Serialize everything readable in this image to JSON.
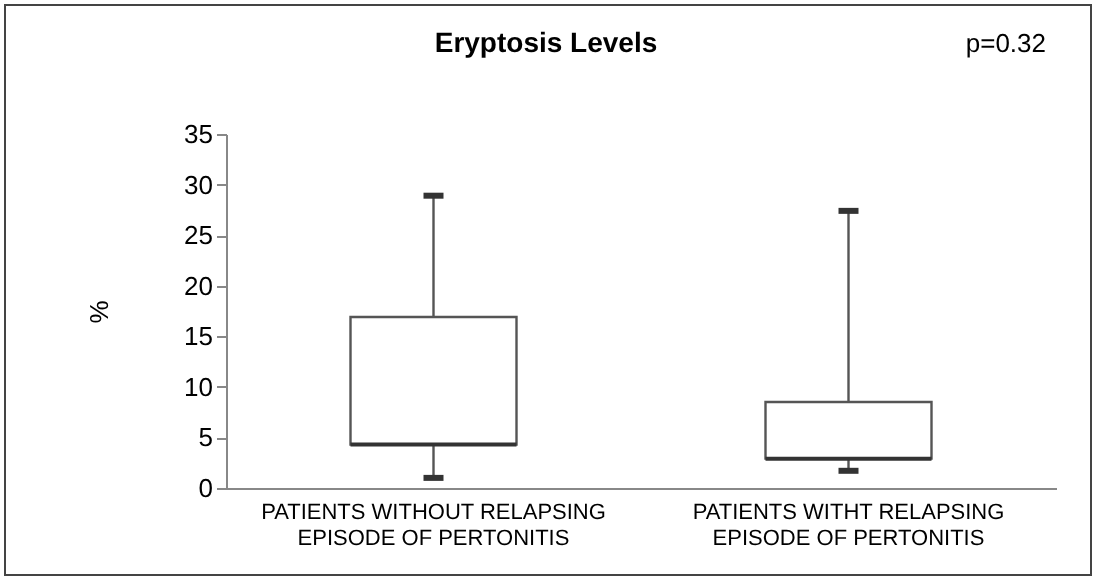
{
  "chart_data": {
    "type": "box",
    "title": "Eryptosis Levels",
    "ylabel": "%",
    "categories": [
      "PATIENTS WITHOUT RELAPSING EPISODE OF PERTONITIS",
      "PATIENTS WITHT RELAPSING EPISODE OF PERTONITIS"
    ],
    "boxes": [
      {
        "low": 1.0,
        "q1": 4.3,
        "median": 4.3,
        "q3": 16.9,
        "high": 28.9
      },
      {
        "low": 1.7,
        "q1": 2.9,
        "median": 2.9,
        "q3": 8.5,
        "high": 27.4
      }
    ],
    "annotations": [
      "p=0.32"
    ],
    "ylim": [
      0,
      35
    ],
    "yticks": [
      0,
      5,
      10,
      15,
      20,
      25,
      30,
      35
    ],
    "grid": false
  }
}
